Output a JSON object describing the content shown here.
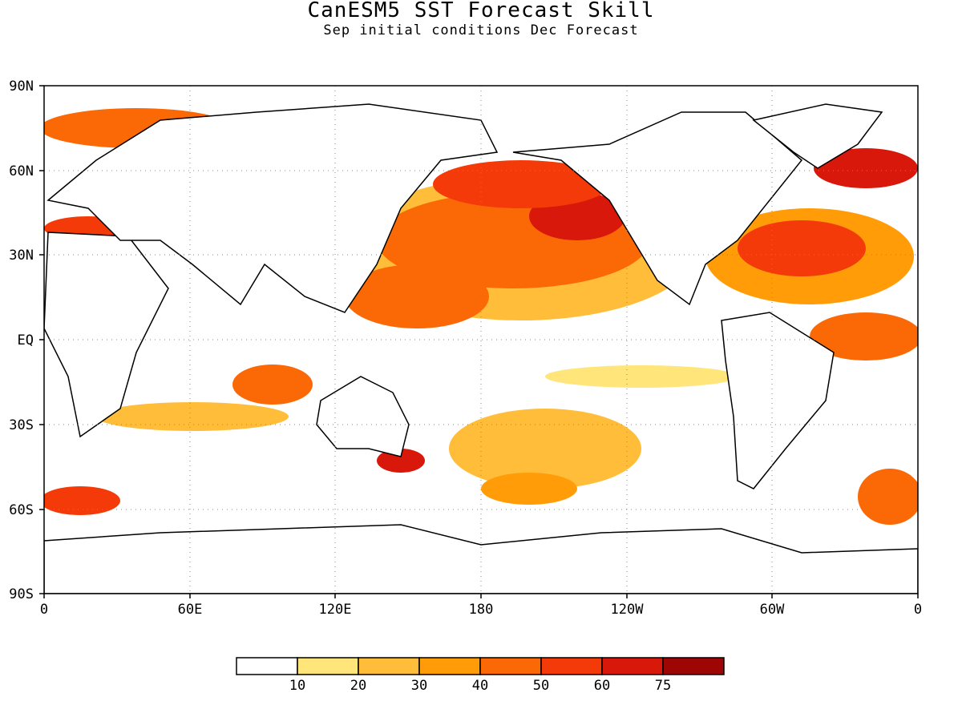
{
  "title": "CanESM5 SST Forecast Skill",
  "subtitle": "Sep initial conditions  Dec Forecast",
  "map": {
    "lat_labels": [
      "90N",
      "60N",
      "30N",
      "EQ",
      "30S",
      "60S",
      "90S"
    ],
    "lon_labels": [
      "0",
      "60E",
      "120E",
      "180",
      "120W",
      "60W",
      "0"
    ],
    "gridlines": "dotted"
  },
  "colorbar": {
    "colors": [
      "#ffffff",
      "#ffe57a",
      "#ffbd3a",
      "#ff9c08",
      "#fb6806",
      "#f53a09",
      "#d8180b",
      "#9e0606"
    ],
    "labels": [
      "10",
      "20",
      "30",
      "40",
      "50",
      "60",
      "75"
    ]
  }
}
